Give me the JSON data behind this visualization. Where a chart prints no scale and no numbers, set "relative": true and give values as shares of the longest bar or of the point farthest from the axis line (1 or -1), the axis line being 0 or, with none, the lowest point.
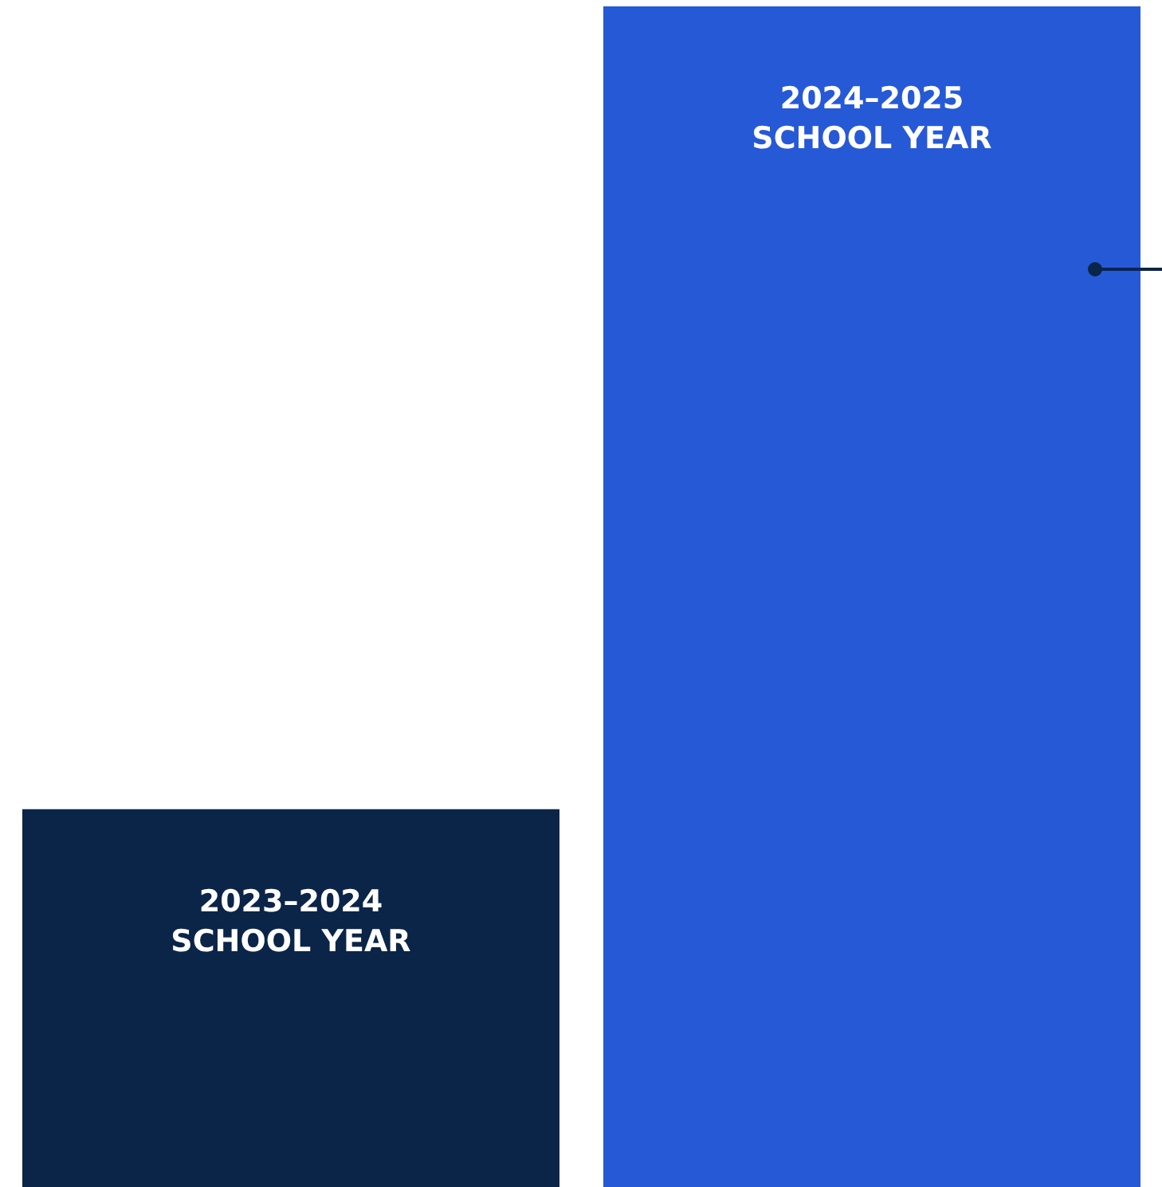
{
  "chart_data": {
    "type": "bar",
    "relative": true,
    "categories": [
      "2023–2024 SCHOOL YEAR",
      "2024–2025 SCHOOL YEAR"
    ],
    "values": [
      0.32,
      1
    ],
    "colors": [
      "#0b2548",
      "#2659d6"
    ]
  }
}
